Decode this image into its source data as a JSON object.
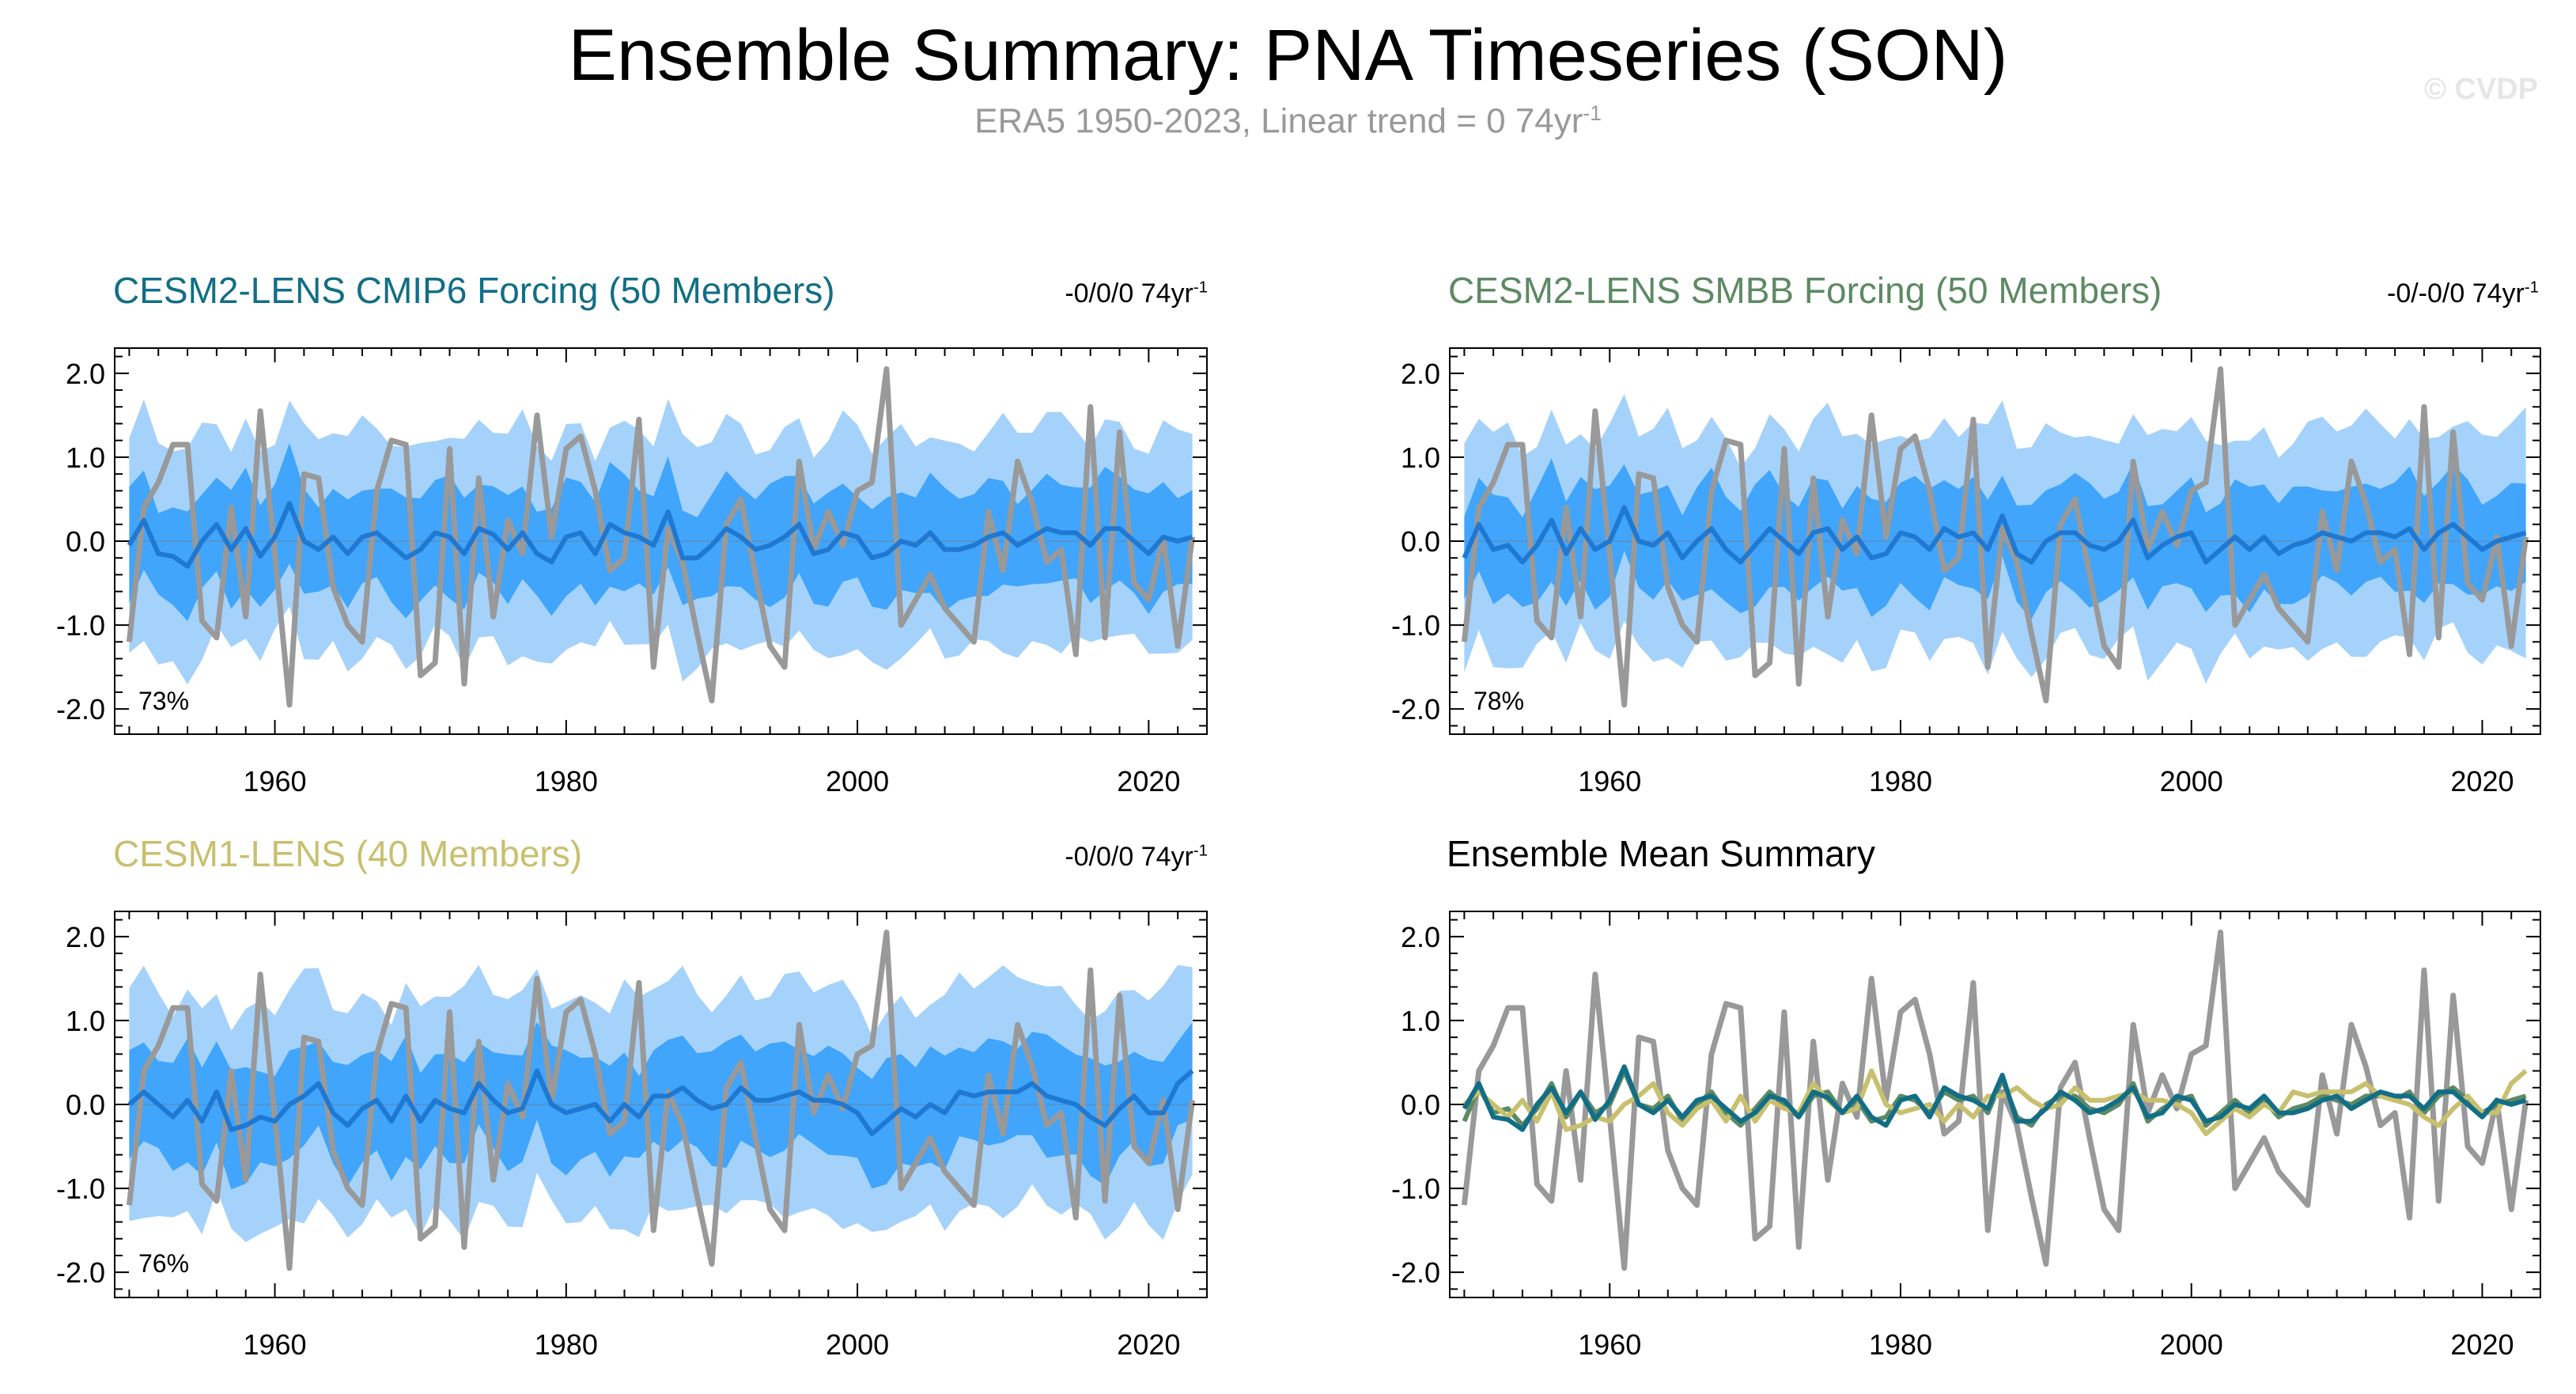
{
  "title": "Ensemble Summary: PNA Timeseries (SON)",
  "subtitle": {
    "text": "ERA5 1950-2023, Linear trend = 0 74yr",
    "sup": "-1"
  },
  "watermark": "© CVDP",
  "colors": {
    "obs": "#999999",
    "outer_band": "#a5d2fb",
    "inner_band": "#40a5fb",
    "ens_mean": "#1f78d1",
    "cmip6": "#126e86",
    "smbb": "#5d8a63",
    "lens1": "#c8c06e"
  },
  "panels": [
    {
      "title": "CESM2-LENS CMIP6 Forcing (50 Members)",
      "title_color": "#126e86",
      "trend": "-0/0/0 74yr",
      "trend_sup": "-1",
      "percent": "73%"
    },
    {
      "title": "CESM2-LENS SMBB Forcing (50 Members)",
      "title_color": "#5d8a63",
      "trend": "-0/-0/0 74yr",
      "trend_sup": "-1",
      "percent": "78%"
    },
    {
      "title": "CESM1-LENS (40 Members)",
      "title_color": "#c8c06e",
      "trend": "-0/0/0 74yr",
      "trend_sup": "-1",
      "percent": "76%"
    },
    {
      "title": "Ensemble Mean Summary",
      "title_color": "#000000",
      "trend": "",
      "trend_sup": "",
      "percent": ""
    }
  ],
  "chart_data": {
    "type": "line",
    "x_label": "",
    "y_label": "",
    "xlim": [
      1949,
      2024
    ],
    "ylim": [
      -2.3,
      2.3
    ],
    "x_ticks": [
      1960,
      1980,
      2000,
      2020
    ],
    "y_ticks": [
      -2.0,
      -1.0,
      0.0,
      1.0,
      2.0
    ],
    "y_tick_labels": [
      "-2.0",
      "-1.0",
      "0.0",
      "1.0",
      "2.0"
    ],
    "x": [
      1950,
      1951,
      1952,
      1953,
      1954,
      1955,
      1956,
      1957,
      1958,
      1959,
      1960,
      1961,
      1962,
      1963,
      1964,
      1965,
      1966,
      1967,
      1968,
      1969,
      1970,
      1971,
      1972,
      1973,
      1974,
      1975,
      1976,
      1977,
      1978,
      1979,
      1980,
      1981,
      1982,
      1983,
      1984,
      1985,
      1986,
      1987,
      1988,
      1989,
      1990,
      1991,
      1992,
      1993,
      1994,
      1995,
      1996,
      1997,
      1998,
      1999,
      2000,
      2001,
      2002,
      2003,
      2004,
      2005,
      2006,
      2007,
      2008,
      2009,
      2010,
      2011,
      2012,
      2013,
      2014,
      2015,
      2016,
      2017,
      2018,
      2019,
      2020,
      2021,
      2022,
      2023
    ],
    "observed": [
      -1.2,
      0.4,
      0.7,
      1.15,
      1.15,
      -0.95,
      -1.15,
      0.4,
      -0.9,
      1.55,
      -0.15,
      -1.95,
      0.8,
      0.75,
      -0.55,
      -1.0,
      -1.2,
      0.6,
      1.2,
      1.15,
      -1.6,
      -1.45,
      1.1,
      -1.7,
      0.75,
      -0.9,
      0.25,
      -0.15,
      1.5,
      0.05,
      1.1,
      1.25,
      0.6,
      -0.35,
      -0.2,
      1.45,
      -1.5,
      0.15,
      -0.25,
      -1.1,
      -1.9,
      0.2,
      0.5,
      -0.4,
      -1.25,
      -1.5,
      0.95,
      -0.1,
      0.35,
      -0.05,
      0.6,
      0.7,
      2.05,
      -1.0,
      -0.7,
      -0.4,
      -0.8,
      -1.0,
      -1.2,
      0.35,
      -0.35,
      0.95,
      0.45,
      -0.25,
      -0.1,
      -1.35,
      1.6,
      -1.15,
      1.3,
      -0.5,
      -0.7,
      0.05,
      -1.25,
      0.05
    ],
    "panels": [
      {
        "name": "CESM2-LENS CMIP6 Forcing (50 Members)",
        "ens_mean": [
          -0.05,
          0.25,
          -0.15,
          -0.18,
          -0.3,
          0.0,
          0.2,
          -0.1,
          0.15,
          -0.18,
          0.05,
          0.45,
          0.0,
          -0.1,
          0.05,
          -0.15,
          0.05,
          0.1,
          -0.05,
          -0.2,
          -0.1,
          0.1,
          0.05,
          -0.15,
          0.15,
          0.08,
          -0.1,
          0.1,
          -0.15,
          -0.25,
          0.05,
          0.1,
          -0.15,
          0.2,
          0.1,
          0.05,
          -0.05,
          0.35,
          -0.2,
          -0.2,
          -0.05,
          0.15,
          0.05,
          -0.1,
          -0.05,
          0.05,
          0.2,
          -0.15,
          -0.1,
          0.1,
          0.05,
          -0.2,
          -0.15,
          0.0,
          -0.05,
          0.1,
          -0.1,
          -0.1,
          -0.05,
          0.05,
          0.1,
          -0.05,
          0.05,
          0.15,
          0.1,
          0.1,
          -0.05,
          0.15,
          0.15,
          0.0,
          -0.15,
          0.05,
          0.0,
          0.05
        ],
        "spread_inner": 0.62,
        "spread_outer": 1.28,
        "percent": 73
      },
      {
        "name": "CESM2-LENS SMBB Forcing (50 Members)",
        "ens_mean": [
          -0.2,
          0.2,
          -0.1,
          -0.05,
          -0.25,
          -0.05,
          0.25,
          -0.15,
          0.15,
          -0.1,
          0.0,
          0.4,
          0.0,
          -0.05,
          0.1,
          -0.2,
          0.0,
          0.15,
          -0.1,
          -0.25,
          -0.05,
          0.15,
          0.0,
          -0.15,
          0.1,
          0.15,
          -0.1,
          0.05,
          -0.2,
          -0.15,
          0.1,
          0.05,
          -0.1,
          0.15,
          0.05,
          0.1,
          -0.1,
          0.3,
          -0.15,
          -0.25,
          0.0,
          0.1,
          0.1,
          -0.05,
          -0.1,
          0.0,
          0.25,
          -0.2,
          -0.05,
          0.05,
          0.1,
          -0.25,
          -0.1,
          0.05,
          -0.1,
          0.05,
          -0.15,
          -0.05,
          0.0,
          0.1,
          0.05,
          0.0,
          0.1,
          0.1,
          0.05,
          0.15,
          -0.1,
          0.1,
          0.2,
          0.05,
          -0.1,
          0.0,
          0.05,
          0.1
        ],
        "spread_inner": 0.62,
        "spread_outer": 1.3,
        "percent": 78
      },
      {
        "name": "CESM1-LENS (40 Members)",
        "ens_mean": [
          0.0,
          0.15,
          0.0,
          -0.15,
          0.05,
          -0.2,
          0.15,
          -0.3,
          -0.25,
          -0.15,
          -0.2,
          0.0,
          0.1,
          0.25,
          -0.1,
          -0.25,
          -0.05,
          0.05,
          -0.2,
          0.1,
          -0.2,
          0.05,
          -0.05,
          -0.1,
          0.25,
          0.05,
          -0.1,
          -0.05,
          0.4,
          0.0,
          -0.1,
          -0.05,
          0.0,
          -0.2,
          0.0,
          -0.15,
          0.1,
          0.1,
          0.2,
          0.05,
          -0.05,
          0.0,
          0.2,
          0.05,
          0.05,
          0.1,
          0.15,
          0.05,
          0.05,
          0.0,
          -0.1,
          -0.35,
          -0.2,
          -0.05,
          -0.15,
          0.0,
          -0.1,
          0.15,
          0.1,
          0.15,
          0.15,
          0.15,
          0.25,
          0.1,
          0.05,
          0.0,
          -0.15,
          -0.25,
          -0.05,
          0.1,
          -0.1,
          -0.1,
          0.25,
          0.4
        ],
        "spread_inner": 0.62,
        "spread_outer": 1.32,
        "percent": 76
      }
    ]
  }
}
